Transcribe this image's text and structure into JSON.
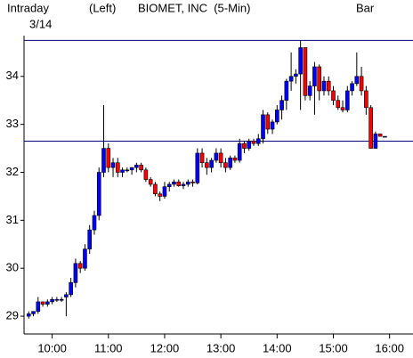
{
  "chart_data": {
    "type": "candlestick",
    "header": {
      "mode": "Intraday",
      "date": "3/14",
      "axis_side": "(Left)",
      "title": "BIOMET, INC  (5-Min)",
      "style": "Bar"
    },
    "x": [
      "09:35",
      "09:40",
      "09:45",
      "09:50",
      "09:55",
      "10:00",
      "10:05",
      "10:10",
      "10:15",
      "10:20",
      "10:25",
      "10:30",
      "10:35",
      "10:40",
      "10:45",
      "10:50",
      "10:55",
      "11:00",
      "11:05",
      "11:10",
      "11:15",
      "11:20",
      "11:25",
      "11:30",
      "11:35",
      "11:40",
      "11:45",
      "11:50",
      "11:55",
      "12:00",
      "12:05",
      "12:10",
      "12:15",
      "12:20",
      "12:25",
      "12:30",
      "12:35",
      "12:40",
      "12:45",
      "12:50",
      "12:55",
      "13:00",
      "13:05",
      "13:10",
      "13:15",
      "13:20",
      "13:25",
      "13:30",
      "13:35",
      "13:40",
      "13:45",
      "13:50",
      "13:55",
      "14:00",
      "14:05",
      "14:10",
      "14:15",
      "14:20",
      "14:25",
      "14:30",
      "14:35",
      "14:40",
      "14:45",
      "14:50",
      "14:55",
      "15:00",
      "15:05",
      "15:10",
      "15:15",
      "15:20",
      "15:25",
      "15:30",
      "15:35",
      "15:40",
      "15:45",
      "15:50",
      "15:55"
    ],
    "open": [
      29.0,
      29.05,
      29.1,
      29.3,
      29.25,
      29.3,
      29.35,
      29.35,
      29.4,
      29.45,
      29.7,
      30.1,
      30.0,
      30.4,
      30.8,
      31.1,
      32.0,
      32.5,
      32.1,
      32.2,
      32.0,
      32.05,
      32.05,
      32.1,
      32.15,
      32.05,
      31.85,
      31.75,
      31.55,
      31.5,
      31.7,
      31.75,
      31.8,
      31.72,
      31.75,
      31.8,
      31.78,
      32.4,
      32.2,
      32.1,
      32.25,
      32.4,
      32.2,
      32.1,
      32.3,
      32.25,
      32.6,
      32.5,
      32.65,
      32.6,
      32.7,
      33.2,
      32.9,
      33.05,
      33.3,
      33.5,
      33.9,
      34.0,
      34.05,
      34.6,
      33.6,
      33.8,
      34.2,
      33.7,
      33.9,
      33.7,
      33.5,
      33.35,
      33.3,
      33.7,
      33.85,
      34.0,
      33.7,
      33.35,
      32.5,
      32.8,
      32.75
    ],
    "high": [
      29.1,
      29.1,
      29.4,
      29.3,
      29.35,
      29.4,
      29.4,
      29.4,
      29.5,
      29.8,
      30.2,
      30.15,
      30.5,
      30.9,
      31.2,
      32.1,
      33.4,
      32.6,
      32.3,
      32.3,
      32.1,
      32.1,
      32.1,
      32.2,
      32.2,
      32.1,
      31.9,
      31.8,
      31.6,
      31.8,
      31.8,
      31.85,
      31.85,
      31.8,
      31.85,
      31.85,
      32.5,
      32.5,
      32.3,
      32.3,
      32.5,
      32.5,
      32.3,
      32.35,
      32.35,
      32.7,
      32.65,
      32.7,
      32.7,
      32.8,
      33.3,
      33.25,
      33.1,
      33.4,
      33.6,
      33.95,
      34.5,
      34.15,
      34.75,
      34.6,
      33.9,
      34.3,
      34.25,
      34.0,
      34.0,
      33.8,
      33.6,
      33.5,
      33.8,
      33.9,
      34.5,
      34.2,
      33.8,
      33.4,
      32.85,
      32.8,
      32.75
    ],
    "low": [
      28.95,
      29.0,
      29.05,
      29.2,
      29.2,
      29.25,
      29.3,
      29.3,
      29.0,
      29.4,
      29.6,
      29.9,
      29.95,
      30.3,
      30.7,
      31.0,
      31.9,
      32.0,
      31.9,
      31.9,
      31.9,
      32.0,
      31.95,
      32.0,
      32.0,
      31.8,
      31.7,
      31.5,
      31.4,
      31.45,
      31.6,
      31.7,
      31.7,
      31.65,
      31.7,
      31.7,
      31.75,
      32.1,
      31.95,
      32.0,
      32.2,
      32.1,
      32.0,
      32.05,
      32.2,
      32.2,
      32.4,
      32.45,
      32.55,
      32.55,
      32.6,
      32.8,
      32.8,
      33.0,
      33.1,
      33.3,
      33.7,
      33.85,
      33.3,
      33.5,
      33.5,
      33.2,
      33.5,
      33.6,
      33.6,
      33.4,
      33.3,
      33.25,
      33.25,
      33.6,
      33.8,
      33.6,
      33.2,
      32.5,
      32.5,
      32.75,
      32.75
    ],
    "close": [
      29.05,
      29.1,
      29.3,
      29.25,
      29.3,
      29.35,
      29.35,
      29.35,
      29.45,
      29.7,
      30.1,
      30.0,
      30.4,
      30.8,
      31.1,
      32.0,
      32.5,
      32.1,
      32.2,
      32.0,
      32.05,
      32.05,
      32.1,
      32.15,
      32.05,
      31.85,
      31.75,
      31.55,
      31.5,
      31.7,
      31.75,
      31.8,
      31.72,
      31.75,
      31.8,
      31.78,
      32.4,
      32.2,
      32.1,
      32.25,
      32.4,
      32.2,
      32.1,
      32.3,
      32.25,
      32.6,
      32.5,
      32.65,
      32.6,
      32.7,
      33.2,
      32.9,
      33.05,
      33.3,
      33.5,
      33.9,
      34.0,
      34.05,
      34.6,
      33.6,
      33.8,
      34.2,
      33.7,
      33.9,
      33.7,
      33.5,
      33.35,
      33.3,
      33.7,
      33.85,
      34.0,
      33.7,
      33.35,
      32.5,
      32.8,
      32.75,
      32.75
    ],
    "up_color": "#0000ff",
    "down_color": "#ff0000",
    "reference_lines": [
      34.75,
      32.65
    ],
    "reference_color": "#000080",
    "xlim": [
      "09:30",
      "16:25"
    ],
    "xticks": [
      "10:00",
      "11:00",
      "12:00",
      "13:00",
      "14:00",
      "15:00",
      "16:00"
    ],
    "ylim": [
      28.63,
      34.85
    ],
    "yticks": [
      29,
      30,
      31,
      32,
      33,
      34
    ]
  }
}
